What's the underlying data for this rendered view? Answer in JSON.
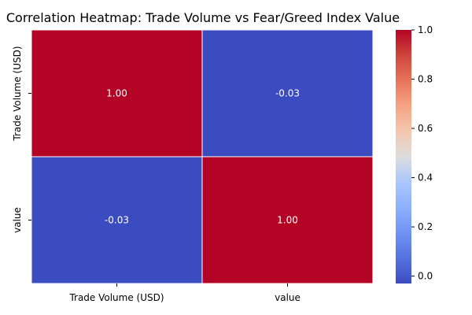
{
  "chart_data": {
    "type": "heatmap",
    "title": "Correlation Heatmap: Trade Volume vs Fear/Greed Index Value",
    "x_categories": [
      "Trade Volume (USD)",
      "value"
    ],
    "y_categories": [
      "Trade Volume (USD)",
      "value"
    ],
    "values": [
      [
        1.0,
        -0.03
      ],
      [
        -0.03,
        1.0
      ]
    ],
    "value_labels": [
      [
        "1.00",
        "-0.03"
      ],
      [
        "-0.03",
        "1.00"
      ]
    ],
    "colorbar": {
      "range": [
        -0.03,
        1.0
      ],
      "ticks": [
        0.0,
        0.2,
        0.4,
        0.6,
        0.8,
        1.0
      ],
      "tick_labels": [
        "0.0",
        "0.2",
        "0.4",
        "0.6",
        "0.8",
        "1.0"
      ],
      "colormap": "coolwarm",
      "low_color": "#3b4cc0",
      "mid_color": "#dddddd",
      "high_color": "#b40426"
    },
    "grid": true
  }
}
